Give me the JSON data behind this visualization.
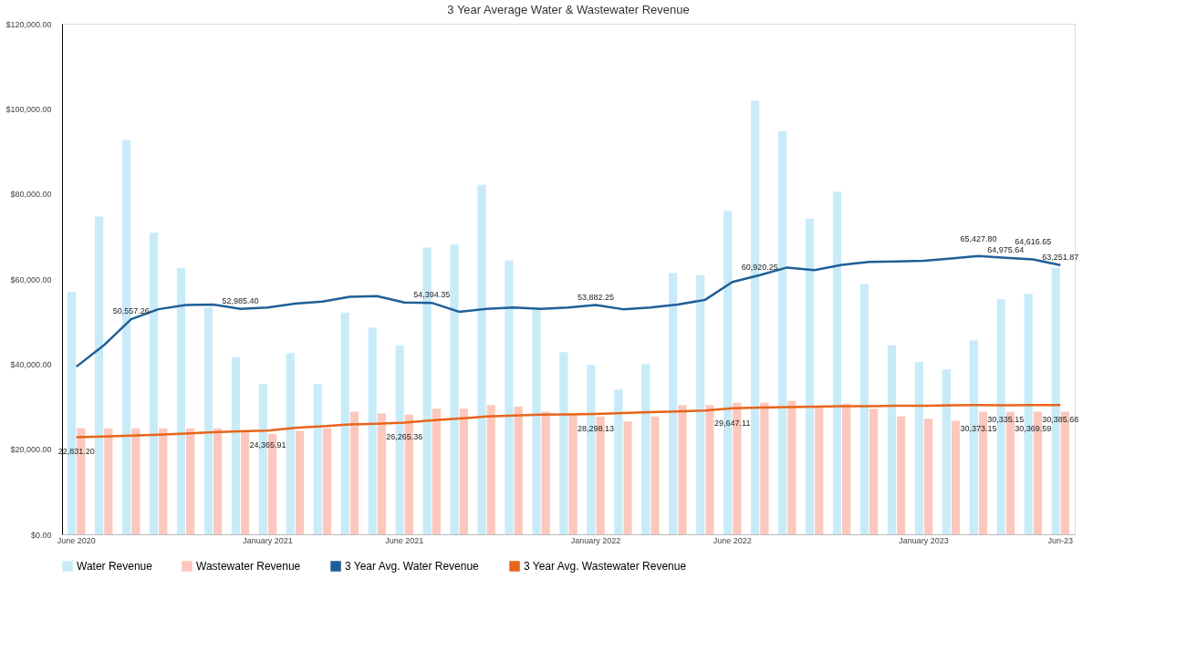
{
  "chart_data": {
    "type": "bar",
    "title": "3 Year Average Water & Wastewater Revenue",
    "categories": [
      "June 2020",
      null,
      null,
      null,
      null,
      null,
      null,
      "January 2021",
      null,
      null,
      null,
      null,
      "June 2021",
      null,
      null,
      null,
      null,
      null,
      null,
      "January 2022",
      null,
      null,
      null,
      null,
      "June 2022",
      null,
      null,
      null,
      null,
      null,
      null,
      "January 2023",
      null,
      null,
      null,
      null,
      "Jun-23"
    ],
    "series": [
      {
        "name": "Water Revenue",
        "color": "#c9ebf8",
        "values": [
          57000,
          74700,
          92600,
          70900,
          62600,
          53300,
          41600,
          35300,
          42600,
          35300,
          52100,
          48600,
          44400,
          67400,
          68100,
          82100,
          64400,
          52800,
          42800,
          39800,
          34000,
          40000,
          61400,
          60900,
          76000,
          101900,
          94700,
          74200,
          80500,
          58800,
          44400,
          40500,
          38800,
          45600,
          55300,
          56500,
          62600
        ]
      },
      {
        "name": "Wastewater Revenue",
        "color": "#fcc8bd",
        "values": [
          24900,
          24900,
          24900,
          24900,
          24900,
          24900,
          24000,
          23600,
          24300,
          24900,
          28800,
          28400,
          28100,
          29500,
          29500,
          30400,
          30000,
          28800,
          28100,
          27700,
          26500,
          27700,
          30400,
          30400,
          30900,
          30900,
          31400,
          30000,
          30700,
          29500,
          27700,
          27200,
          26700,
          28800,
          28800,
          28800,
          28800
        ]
      },
      {
        "name": "3 Year Avg. Water Revenue",
        "type": "line",
        "color": "#1f5f98",
        "values": [
          39400,
          44400,
          50557.26,
          52900,
          53900,
          54000,
          52985.4,
          53300,
          54200,
          54700,
          55800,
          56000,
          54500,
          54394.35,
          52300,
          53000,
          53300,
          53000,
          53300,
          53882.25,
          52900,
          53300,
          54000,
          55100,
          59300,
          60920.25,
          62700,
          62100,
          63300,
          64000,
          64100,
          64300,
          64800,
          65427.8,
          64975.64,
          64616.65,
          63251.87
        ],
        "value_labels": [
          null,
          null,
          "50,557.26",
          null,
          null,
          null,
          "52,985.40",
          null,
          null,
          null,
          null,
          null,
          null,
          "54,394.35",
          null,
          null,
          null,
          null,
          null,
          "53,882.25",
          null,
          null,
          null,
          null,
          null,
          "60,920.25",
          null,
          null,
          null,
          null,
          null,
          null,
          null,
          "65,427.80",
          "64,975.64",
          "64,616.65",
          "63,251.87"
        ]
      },
      {
        "name": "3 Year Avg. Wastewater Revenue",
        "type": "line",
        "color": "#e8641b",
        "values": [
          22831.2,
          23000,
          23200,
          23400,
          23700,
          24000,
          24200,
          24365.91,
          25000,
          25400,
          25800,
          26000,
          26265.36,
          26800,
          27200,
          27700,
          27900,
          28100,
          28200,
          28298.13,
          28500,
          28700,
          28900,
          29100,
          29647.11,
          29800,
          29900,
          30000,
          30100,
          30100,
          30200,
          30200,
          30300,
          30373.15,
          30335.15,
          30369.59,
          30385.68
        ],
        "value_labels": [
          "22,831.20",
          null,
          null,
          null,
          null,
          null,
          null,
          "24,365.91",
          null,
          null,
          null,
          null,
          "26,265.36",
          null,
          null,
          null,
          null,
          null,
          null,
          "28,298.13",
          null,
          null,
          null,
          null,
          "29,647.11",
          null,
          null,
          null,
          null,
          null,
          null,
          null,
          null,
          "30,373.15",
          "30,335.15",
          "30,369.59",
          "30,385.68"
        ]
      }
    ],
    "ylim": [
      0,
      120000
    ],
    "yticks": [
      {
        "value": 0,
        "label": "$0.00"
      },
      {
        "value": 20000,
        "label": "$20,000.00"
      },
      {
        "value": 40000,
        "label": "$40,000.00"
      },
      {
        "value": 60000,
        "label": "$60,000.00"
      },
      {
        "value": 80000,
        "label": "$80,000.00"
      },
      {
        "value": 100000,
        "label": "$100,000.00"
      },
      {
        "value": 120000,
        "label": "$120,000.00"
      }
    ],
    "grid": false,
    "legend": "bottom"
  }
}
